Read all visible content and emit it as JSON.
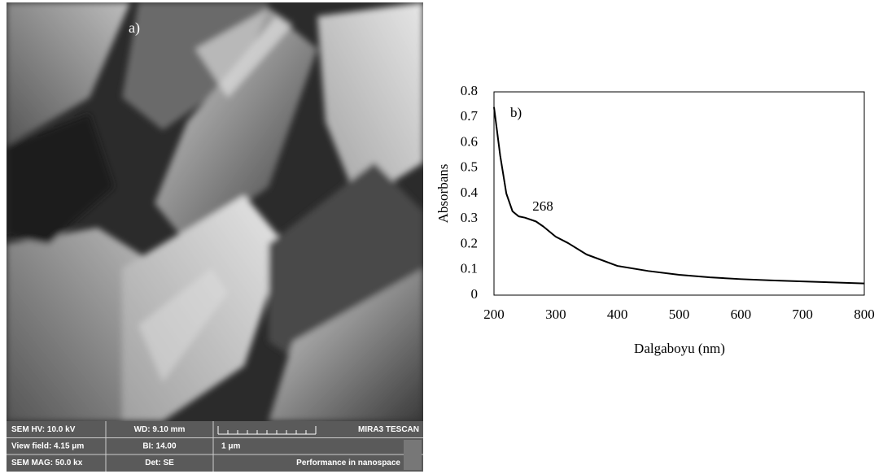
{
  "sem_panel": {
    "label": "a)",
    "info": [
      [
        "SEM HV: 10.0 kV",
        "WD: 9.10 mm",
        "MIRA3 TESCAN"
      ],
      [
        "View field: 4.15 μm",
        "BI: 14.00",
        "1 μm"
      ],
      [
        "SEM MAG: 50.0 kx",
        "Det: SE",
        "Performance in nanospace"
      ]
    ]
  },
  "chart_data": {
    "type": "line",
    "label": "b)",
    "annotation": "268",
    "xlabel": "Dalgaboyu (nm)",
    "ylabel": "Absorbans",
    "x": [
      200,
      210,
      220,
      230,
      240,
      250,
      268,
      280,
      300,
      320,
      350,
      400,
      450,
      500,
      550,
      600,
      650,
      700,
      750,
      800
    ],
    "series": [
      {
        "name": "Absorbans",
        "color": "#000000",
        "values": [
          0.74,
          0.55,
          0.4,
          0.33,
          0.31,
          0.305,
          0.29,
          0.27,
          0.23,
          0.205,
          0.16,
          0.115,
          0.095,
          0.08,
          0.07,
          0.063,
          0.058,
          0.054,
          0.05,
          0.046
        ]
      }
    ],
    "xlim": [
      200,
      800
    ],
    "xticks": [
      200,
      300,
      400,
      500,
      600,
      700,
      800
    ],
    "ylim": [
      0,
      0.8
    ],
    "yticks": [
      0,
      0.1,
      0.2,
      0.3,
      0.4,
      0.5,
      0.6,
      0.7,
      0.8
    ],
    "grid": false
  }
}
